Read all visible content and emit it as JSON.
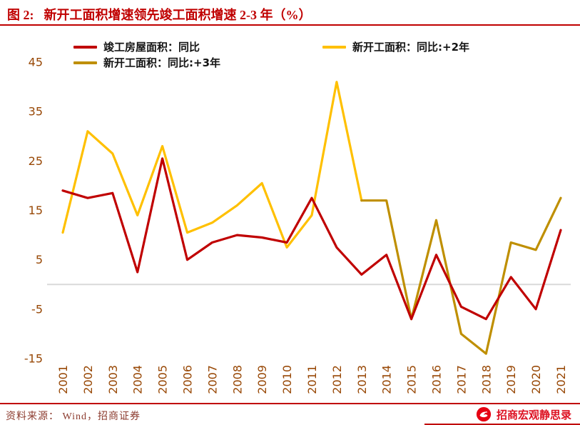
{
  "header": {
    "figure_label": "图 2:",
    "title": "新开工面积增速领先竣工面积增速 2-3 年（%）"
  },
  "legend": {
    "items": [
      {
        "label": "竣工房屋面积：同比",
        "series_index": 0
      },
      {
        "label": "新开工面积：同比:+3年",
        "series_index": 2
      },
      {
        "label": "新开工面积：同比:+2年",
        "series_index": 1
      }
    ]
  },
  "footer": {
    "source": "资料来源： Wind，招商证券",
    "brand": "招商宏观静思录"
  },
  "theme": {
    "accent_red": "#C00000",
    "tick_label_color": "#984806",
    "zero_line_color": "#D9D9D9",
    "logo_red": "#E60012"
  },
  "chart_data": {
    "type": "line",
    "title": "新开工面积增速领先竣工面积增速 2-3 年（%）",
    "x": [
      2001,
      2002,
      2003,
      2004,
      2005,
      2006,
      2007,
      2008,
      2009,
      2010,
      2011,
      2012,
      2013,
      2014,
      2015,
      2016,
      2017,
      2018,
      2019,
      2020,
      2021
    ],
    "series": [
      {
        "name": "竣工房屋面积：同比",
        "color": "#C00000",
        "values": [
          19,
          17.5,
          18.5,
          2.5,
          25.5,
          5,
          8.5,
          10,
          9.5,
          8.5,
          17.5,
          7.5,
          2,
          6,
          -7,
          6,
          -4.5,
          -7,
          1.5,
          -5,
          11
        ]
      },
      {
        "name": "新开工面积：同比:+2年",
        "color": "#FFC000",
        "values": [
          10.5,
          31,
          26.5,
          14,
          28,
          10.5,
          12.5,
          16,
          20.5,
          7.5,
          14,
          41,
          17,
          null,
          null,
          null,
          null,
          null,
          null,
          null,
          null
        ]
      },
      {
        "name": "新开工面积：同比:+3年",
        "color": "#BF8F00",
        "values": [
          null,
          null,
          null,
          null,
          null,
          null,
          null,
          null,
          null,
          null,
          null,
          null,
          17,
          17,
          -7,
          13,
          -10,
          -14,
          8.5,
          7,
          17.5
        ]
      }
    ],
    "ylim": [
      -15,
      45
    ],
    "yticks": [
      45,
      35,
      25,
      15,
      5,
      -5,
      -15
    ],
    "xlabel": "",
    "ylabel": "",
    "grid": false,
    "zero_line": true,
    "x_label_rotation": -90,
    "legend_position": "top"
  }
}
